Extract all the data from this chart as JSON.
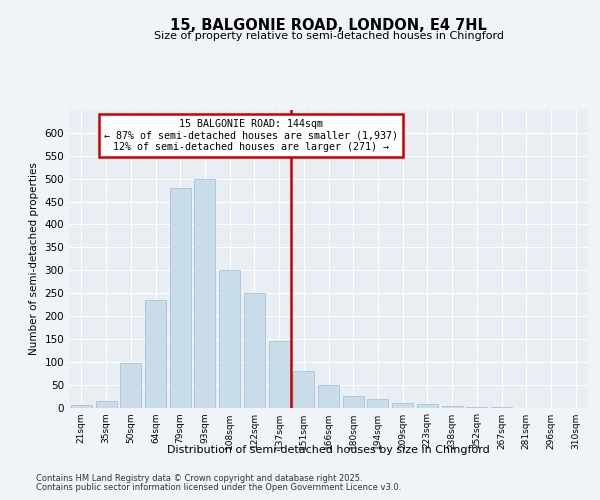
{
  "title1": "15, BALGONIE ROAD, LONDON, E4 7HL",
  "title2": "Size of property relative to semi-detached houses in Chingford",
  "xlabel": "Distribution of semi-detached houses by size in Chingford",
  "ylabel": "Number of semi-detached properties",
  "categories": [
    "21sqm",
    "35sqm",
    "50sqm",
    "64sqm",
    "79sqm",
    "93sqm",
    "108sqm",
    "122sqm",
    "137sqm",
    "151sqm",
    "166sqm",
    "180sqm",
    "194sqm",
    "209sqm",
    "223sqm",
    "238sqm",
    "252sqm",
    "267sqm",
    "281sqm",
    "296sqm",
    "310sqm"
  ],
  "values": [
    5,
    15,
    97,
    235,
    480,
    500,
    300,
    250,
    145,
    80,
    50,
    25,
    18,
    10,
    7,
    3,
    2,
    1,
    0,
    0,
    0
  ],
  "bar_color": "#c9dcea",
  "bar_edge_color": "#a8c4d8",
  "vline_color": "#cc0000",
  "annotation_line1": "15 BALGONIE ROAD: 144sqm",
  "annotation_line2": "← 87% of semi-detached houses are smaller (1,937)",
  "annotation_line3": "12% of semi-detached houses are larger (271) →",
  "annotation_box_color": "#cc0000",
  "footer1": "Contains HM Land Registry data © Crown copyright and database right 2025.",
  "footer2": "Contains public sector information licensed under the Open Government Licence v3.0.",
  "ylim": [
    0,
    650
  ],
  "yticks": [
    0,
    50,
    100,
    150,
    200,
    250,
    300,
    350,
    400,
    450,
    500,
    550,
    600
  ],
  "bg_color": "#f0f4f8",
  "plot_bg_color": "#e8eef4",
  "vline_pos": 8.5
}
